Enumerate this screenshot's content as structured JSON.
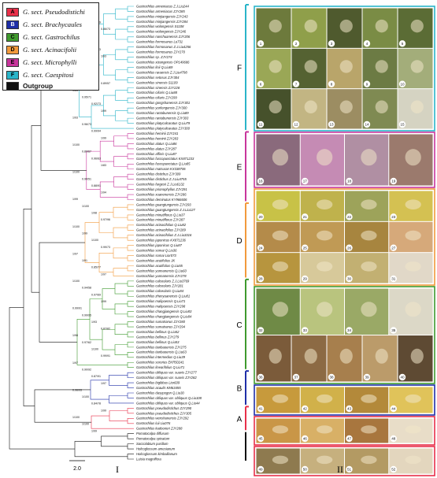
{
  "legend": {
    "items": [
      {
        "code": "A",
        "label": "G. sect. Pseudodistichi",
        "color": "#e8304a"
      },
      {
        "code": "B",
        "label": "G. sect. Brachycaules",
        "color": "#1f2fa8"
      },
      {
        "code": "C",
        "label": "G. sect. Gastrochilus",
        "color": "#3f9a2e"
      },
      {
        "code": "D",
        "label": "G. sect. Acinacifolii",
        "color": "#f29a3c"
      },
      {
        "code": "E",
        "label": "G. sect. Microphylli",
        "color": "#c8359c"
      },
      {
        "code": "F",
        "label": "G. sect. Caespitosi",
        "color": "#2ab5c9"
      }
    ],
    "outgroup": {
      "label": "Outgroup",
      "color": "#111111"
    }
  },
  "panels": {
    "tree_label": "I",
    "photo_label": "II"
  },
  "scale_bar": "2.0",
  "clade_letters": [
    "F",
    "E",
    "D",
    "C",
    "B",
    "A"
  ],
  "taxa": {
    "F": [
      "Gastrochilus armeniacus Z.J.Liu244",
      "Gastrochilus armeniacus ZJY285",
      "Gastrochilus minjiangensis ZJY243",
      "Gastrochilus minjiangensis ZJY284",
      "Gastrochilus wolongensis S1108",
      "Gastrochilus wolongensis ZJY246",
      "Gastrochilus nanchuanensis ZJY206",
      "Gastrochilus formosanus Lu731",
      "Gastrochilus formosanus Z.J.Liu4256",
      "Gastrochilus formosanus ZJY270",
      "Gastrochilus sp. ZJY274",
      "Gastrochilus xizangensis OP149686",
      "Gastrochilus linii Q.Liu69",
      "Gastrochilus raraensis Z.J.Liu4798",
      "Gastrochilus setosus ZJY304",
      "Gastrochilus sinensis S1109",
      "Gastrochilus sinensis ZJY228",
      "Gastrochilus ciliaris Q.Liu88",
      "Gastrochilus ciliaris ZJY299",
      "Gastrochilus gongshanensis ZJY301",
      "Gastrochilus yunlongensis ZJY300",
      "Gastrochilus rantabunensis Q.Liu89",
      "Gastrochilus rantabunensis ZJY303",
      "Gastrochilus platycalcaratus Q.Liu79",
      "Gastrochilus platycalcaratus ZJY300"
    ],
    "E": [
      "Gastrochilus heminii ZJY241",
      "Gastrochilus heminii ZJY283",
      "Gastrochilus alatus Q.Liu86",
      "Gastrochilus alatus ZJY287",
      "Gastrochilus affinis Q.Liu87",
      "Gastrochilus fuscopunctatus KX871233",
      "Gastrochilus fuscopunctatus Q.Liu85",
      "Gastrochilus matsuran KX338706",
      "Gastrochilus distichus ZJY309",
      "Gastrochilus distichus Z.J.Liu4755",
      "Gastrochilus fargesii Z.J.Liu6132",
      "Gastrochilus prionophyllus ZJY291",
      "Gastrochilus xuanenensis ZJY286",
      "Gastrochilus deminutus KY966606"
    ],
    "D": [
      "Gastrochilus guangtungensis ZJY293",
      "Gastrochilus guangtungensis Z.J.Liu127",
      "Gastrochilus minutiflorus Q.Liu37",
      "Gastrochilus minutiflorus ZJY287",
      "Gastrochilus acinacifolius Q.Liu82",
      "Gastrochilus acinacifolius ZJY289",
      "Gastrochilus acinacifolius Z.J.Liu3316",
      "Gastrochilus japonicus KX871236",
      "Gastrochilus japonicus Q.Liu87",
      "Gastrochilus somai Q.Liu36",
      "Gastrochilus somai Lior073",
      "Gastrochilus acutifolius JK",
      "Gastrochilus acutifolius Q.Liu55",
      "Gastrochilus yunnanensis Q.Liu60",
      "Gastrochilus yunnanensis ZJY278"
    ],
    "C": [
      "Gastrochilus calceolaris Z.J.Liu3769",
      "Gastrochilus calceolaris ZJY281",
      "Gastrochilus calceolaris Q.Liu84",
      "Gastrochilus zhenyuanensis Q.Liu81",
      "Gastrochilus malipoensis Q.Liu71",
      "Gastrochilus malipoensis ZJY298",
      "Gastrochilus changjiangensis Q.Liu83",
      "Gastrochilus changjiangensis Q.Liu84",
      "Gastrochilus sumatranus ZJY280",
      "Gastrochilus sumatranus ZJY294",
      "Gastrochilus bellinus Q.Liu52",
      "Gastrochilus bellinus ZJY279",
      "Gastrochilus bellinus Q.Liu53",
      "Gastrochilus tianbaoensis ZJY275",
      "Gastrochilus tianbaoensis Q.Liu63",
      "Gastrochilus intermedius Q.Liu39",
      "Gastrochilus sororius EKR50241",
      "Gastrochilus linearifolius Q.Liu71"
    ],
    "B": [
      "Gastrochilus obliquus var. suavis ZJY277",
      "Gastrochilus obliquus var. suavis ZJY282",
      "Gastrochilus bigibbus Lior609",
      "Gastrochilus acaulis KM63455",
      "Gastrochilus dasypogon Q.Liu30",
      "Gastrochilus obliquus var. obliquus Q.Liu108",
      "Gastrochilus obliquus var. obliquus Q.Liu44"
    ],
    "A": [
      "Gastrochilus pseudodistichus ZJY290",
      "Gastrochilus pseudodistichus ZJY305",
      "Gastrochilus wenshanensis ZJY292",
      "Gastrochilus luii Liu076",
      "Gastrochilus kadoorieri ZJY288"
    ],
    "O": [
      "Pomatocalpa diffusum",
      "Pomatocalpa spicatum",
      "Saccolabium pusillum",
      "Holcoglossum amesianum",
      "Holcoglossum kimballianum",
      "Luisia magniflora"
    ]
  },
  "support_values": [
    "1/100",
    "1/99",
    "0.85/99",
    "0.86/73",
    "1/99",
    "1/93",
    "0.99/83",
    "1/93",
    "1/99",
    "0.90/51",
    "1/95",
    "0.89/57",
    "1/63",
    "0.95/71",
    "0.92/73",
    "1/99",
    "1/93",
    "0.96/73",
    "0.99/94",
    "1/99",
    "1/100",
    "0.89/67",
    "0.96/63",
    "1/83",
    "1/100",
    "0.90/51",
    "0.88/91",
    "1/94",
    "1/99",
    "1/100",
    "1/98",
    "0.97/96",
    "1/100",
    "1/99",
    "1/100",
    "0.99/73",
    "1/97",
    "1/91",
    "0.85/77",
    "1/97",
    "1/100",
    "0.94/58",
    "0.97/69",
    "1/99",
    "0.99/91",
    "0.99/95",
    "1/93",
    "0.87/82",
    "1/98",
    "0.97/62",
    "1/100",
    "0.99/91",
    "1/97",
    "0.90/92",
    "0.87/91",
    "1/97",
    "0.96/93",
    "1/100",
    "0.84/78",
    "1/99",
    "1/100",
    "1/100",
    "1/99"
  ],
  "photos": [
    {
      "n": "1",
      "c": "#6d7a3c"
    },
    {
      "n": "2",
      "c": "#8f9f4a"
    },
    {
      "n": "3",
      "c": "#4f5a2e"
    },
    {
      "n": "4",
      "c": "#7a8c45"
    },
    {
      "n": "5",
      "c": "#5b6c35"
    },
    {
      "n": "6",
      "c": "#9aa756"
    },
    {
      "n": "7",
      "c": "#556232"
    },
    {
      "n": "8",
      "c": "#b9a56a"
    },
    {
      "n": "9",
      "c": "#6c7b44"
    },
    {
      "n": "10",
      "c": "#a3ad7a"
    },
    {
      "n": "11",
      "c": "#46512b"
    },
    {
      "n": "12",
      "c": "#c2b583"
    },
    {
      "n": "13",
      "c": "#9c8d62"
    },
    {
      "n": "14",
      "c": "#7f8a52"
    },
    {
      "n": "15",
      "c": "#d5d3c2"
    },
    {
      "n": "16",
      "c": "#8a6a7c"
    },
    {
      "n": "17",
      "c": "#c58bb4"
    },
    {
      "n": "18",
      "c": "#b08fa3"
    },
    {
      "n": "19",
      "c": "#9b7a6d"
    },
    {
      "n": "20",
      "c": "#c8c247"
    },
    {
      "n": "21",
      "c": "#bfb24c"
    },
    {
      "n": "22",
      "c": "#9da35a"
    },
    {
      "n": "23",
      "c": "#d4c152"
    },
    {
      "n": "24",
      "c": "#b48b4a"
    },
    {
      "n": "25",
      "c": "#c09a55"
    },
    {
      "n": "26",
      "c": "#a7853f"
    },
    {
      "n": "27",
      "c": "#d6a97a"
    },
    {
      "n": "28",
      "c": "#b7953e"
    },
    {
      "n": "29",
      "c": "#d7c99a"
    },
    {
      "n": "30",
      "c": "#c2b072"
    },
    {
      "n": "31",
      "c": "#e1d8c8"
    },
    {
      "n": "32",
      "c": "#6f8a46"
    },
    {
      "n": "33",
      "c": "#b9c47e"
    },
    {
      "n": "34",
      "c": "#9aa966"
    },
    {
      "n": "35",
      "c": "#dcd8c7"
    },
    {
      "n": "36",
      "c": "#7b5b3a"
    },
    {
      "n": "37",
      "c": "#8c6a44"
    },
    {
      "n": "38",
      "c": "#a77f4d"
    },
    {
      "n": "39",
      "c": "#bb9b6a"
    },
    {
      "n": "40",
      "c": "#5e4a33"
    },
    {
      "n": "41",
      "c": "#c79a3c"
    },
    {
      "n": "42",
      "c": "#d1b14a"
    },
    {
      "n": "43",
      "c": "#b3893a"
    },
    {
      "n": "44",
      "c": "#e0c35a"
    },
    {
      "n": "45",
      "c": "#c99647"
    },
    {
      "n": "46",
      "c": "#d8b066"
    },
    {
      "n": "47",
      "c": "#a8763e"
    },
    {
      "n": "48",
      "c": "#e8ddc8"
    },
    {
      "n": "49",
      "c": "#8e7a4f"
    },
    {
      "n": "50",
      "c": "#c6b07e"
    },
    {
      "n": "51",
      "c": "#b39a63"
    },
    {
      "n": "52",
      "c": "#e3d6be"
    }
  ]
}
